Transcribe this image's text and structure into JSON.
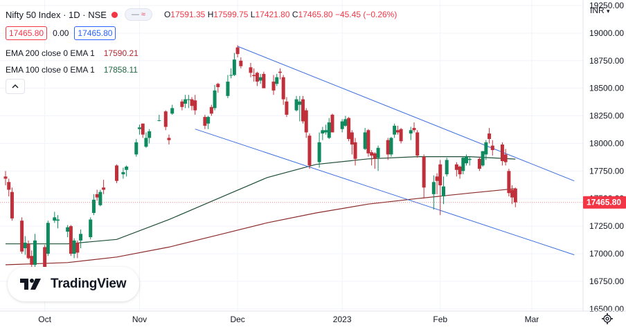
{
  "header": {
    "symbol": "Nifty 50 Index · 1D · NSE",
    "indicator_icon": "wave-icon",
    "ohlc": {
      "o_label": "O",
      "o": "17591.35",
      "h_label": "H",
      "h": "17599.75",
      "l_label": "L",
      "l": "17421.80",
      "c_label": "C",
      "c": "17465.80",
      "change": "−45.45 (−0.26%)"
    }
  },
  "trade": {
    "sell": "17465.80",
    "spread": "0.00",
    "buy": "17465.80"
  },
  "indicators": [
    {
      "label": "EMA 200 close 0 EMA 1",
      "value": "17590.21"
    },
    {
      "label": "EMA 100 close 0 EMA 1",
      "value": "17858.11"
    }
  ],
  "logo": {
    "text": "TradingView"
  },
  "currency": "INR",
  "colors": {
    "up": "#0f8a5f",
    "down": "#c0303b",
    "ema200": "#8b2a2a",
    "ema100": "#1e4d35",
    "trend": "#3d6fe0",
    "price_tag": "#f23645"
  },
  "chart_data": {
    "type": "candlestick",
    "y_ticks": [
      "19250.00",
      "19000.00",
      "18750.00",
      "18500.00",
      "18250.00",
      "18000.00",
      "17750.00",
      "17500.00",
      "17250.00",
      "17000.00",
      "16750.00",
      "16500.00"
    ],
    "x_ticks": [
      {
        "date": "2022-10-03",
        "label": "Oct"
      },
      {
        "date": "2022-11-01",
        "label": "Nov"
      },
      {
        "date": "2022-12-01",
        "label": "Dec"
      },
      {
        "date": "2023-01-02",
        "label": "2023"
      },
      {
        "date": "2023-02-01",
        "label": "Feb"
      },
      {
        "date": "2023-03-01",
        "label": "Mar"
      }
    ],
    "ylim": [
      16480,
      19300
    ],
    "xlim": [
      "2022-09-21",
      "2023-03-15"
    ],
    "last_price": "17465.80",
    "candles": [
      {
        "d": "2022-09-21",
        "o": 17700,
        "h": 17750,
        "l": 17620,
        "c": 17680
      },
      {
        "d": "2022-09-22",
        "o": 17650,
        "h": 17680,
        "l": 17520,
        "c": 17580
      },
      {
        "d": "2022-09-23",
        "o": 17560,
        "h": 17600,
        "l": 17300,
        "c": 17320
      },
      {
        "d": "2022-09-26",
        "o": 17300,
        "h": 17330,
        "l": 17000,
        "c": 17020
      },
      {
        "d": "2022-09-27",
        "o": 17050,
        "h": 17160,
        "l": 16990,
        "c": 17100
      },
      {
        "d": "2022-09-28",
        "o": 17090,
        "h": 17120,
        "l": 16950,
        "c": 16960
      },
      {
        "d": "2022-09-29",
        "o": 16980,
        "h": 17030,
        "l": 16880,
        "c": 16900
      },
      {
        "d": "2022-09-30",
        "o": 16900,
        "h": 17180,
        "l": 16860,
        "c": 17120
      },
      {
        "d": "2022-10-03",
        "o": 17060,
        "h": 17080,
        "l": 16860,
        "c": 16880
      },
      {
        "d": "2022-10-04",
        "o": 17000,
        "h": 17300,
        "l": 16980,
        "c": 17280
      },
      {
        "d": "2022-10-06",
        "o": 17300,
        "h": 17380,
        "l": 17280,
        "c": 17330
      },
      {
        "d": "2022-10-07",
        "o": 17300,
        "h": 17350,
        "l": 17230,
        "c": 17310
      },
      {
        "d": "2022-10-10",
        "o": 17200,
        "h": 17260,
        "l": 17150,
        "c": 17240
      },
      {
        "d": "2022-10-11",
        "o": 17250,
        "h": 17260,
        "l": 16980,
        "c": 17000
      },
      {
        "d": "2022-10-12",
        "o": 17000,
        "h": 17140,
        "l": 16960,
        "c": 17120
      },
      {
        "d": "2022-10-13",
        "o": 17100,
        "h": 17120,
        "l": 16960,
        "c": 17010
      },
      {
        "d": "2022-10-14",
        "o": 17120,
        "h": 17220,
        "l": 17050,
        "c": 17180
      },
      {
        "d": "2022-10-17",
        "o": 17150,
        "h": 17330,
        "l": 17130,
        "c": 17310
      },
      {
        "d": "2022-10-18",
        "o": 17370,
        "h": 17540,
        "l": 17350,
        "c": 17490
      },
      {
        "d": "2022-10-19",
        "o": 17540,
        "h": 17580,
        "l": 17480,
        "c": 17510
      },
      {
        "d": "2022-10-20",
        "o": 17440,
        "h": 17580,
        "l": 17430,
        "c": 17560
      },
      {
        "d": "2022-10-21",
        "o": 17600,
        "h": 17670,
        "l": 17540,
        "c": 17580
      },
      {
        "d": "2022-10-25",
        "o": 17800,
        "h": 17810,
        "l": 17640,
        "c": 17660
      },
      {
        "d": "2022-10-27",
        "o": 17720,
        "h": 17780,
        "l": 17680,
        "c": 17740
      },
      {
        "d": "2022-10-28",
        "o": 17760,
        "h": 17800,
        "l": 17700,
        "c": 17790
      },
      {
        "d": "2022-10-31",
        "o": 17900,
        "h": 18040,
        "l": 17880,
        "c": 18010
      },
      {
        "d": "2022-11-01",
        "o": 18130,
        "h": 18170,
        "l": 18080,
        "c": 18145
      },
      {
        "d": "2022-11-02",
        "o": 18180,
        "h": 18180,
        "l": 18050,
        "c": 18080
      },
      {
        "d": "2022-11-03",
        "o": 17970,
        "h": 18100,
        "l": 17960,
        "c": 18050
      },
      {
        "d": "2022-11-04",
        "o": 18050,
        "h": 18130,
        "l": 18000,
        "c": 18110
      },
      {
        "d": "2022-11-07",
        "o": 18210,
        "h": 18260,
        "l": 18200,
        "c": 18210
      },
      {
        "d": "2022-11-09",
        "o": 18290,
        "h": 18300,
        "l": 18120,
        "c": 18150
      },
      {
        "d": "2022-11-10",
        "o": 18050,
        "h": 18080,
        "l": 17990,
        "c": 18030
      },
      {
        "d": "2022-11-11",
        "o": 18270,
        "h": 18350,
        "l": 18260,
        "c": 18320
      },
      {
        "d": "2022-11-14",
        "o": 18380,
        "h": 18400,
        "l": 18300,
        "c": 18330
      },
      {
        "d": "2022-11-15",
        "o": 18360,
        "h": 18440,
        "l": 18320,
        "c": 18400
      },
      {
        "d": "2022-11-16",
        "o": 18400,
        "h": 18440,
        "l": 18320,
        "c": 18400
      },
      {
        "d": "2022-11-17",
        "o": 18400,
        "h": 18420,
        "l": 18300,
        "c": 18340
      },
      {
        "d": "2022-11-18",
        "o": 18390,
        "h": 18440,
        "l": 18260,
        "c": 18300
      },
      {
        "d": "2022-11-21",
        "o": 18240,
        "h": 18260,
        "l": 18130,
        "c": 18160
      },
      {
        "d": "2022-11-22",
        "o": 18180,
        "h": 18250,
        "l": 18130,
        "c": 18240
      },
      {
        "d": "2022-11-23",
        "o": 18330,
        "h": 18350,
        "l": 18250,
        "c": 18270
      },
      {
        "d": "2022-11-24",
        "o": 18320,
        "h": 18530,
        "l": 18300,
        "c": 18480
      },
      {
        "d": "2022-11-25",
        "o": 18540,
        "h": 18550,
        "l": 18460,
        "c": 18510
      },
      {
        "d": "2022-11-28",
        "o": 18430,
        "h": 18620,
        "l": 18410,
        "c": 18560
      },
      {
        "d": "2022-11-29",
        "o": 18620,
        "h": 18680,
        "l": 18590,
        "c": 18620
      },
      {
        "d": "2022-11-30",
        "o": 18620,
        "h": 18820,
        "l": 18610,
        "c": 18760
      },
      {
        "d": "2022-12-01",
        "o": 18870,
        "h": 18890,
        "l": 18780,
        "c": 18810
      },
      {
        "d": "2022-12-02",
        "o": 18750,
        "h": 18780,
        "l": 18680,
        "c": 18700
      },
      {
        "d": "2022-12-05",
        "o": 18690,
        "h": 18730,
        "l": 18600,
        "c": 18640
      },
      {
        "d": "2022-12-06",
        "o": 18620,
        "h": 18680,
        "l": 18560,
        "c": 18610
      },
      {
        "d": "2022-12-07",
        "o": 18640,
        "h": 18650,
        "l": 18520,
        "c": 18560
      },
      {
        "d": "2022-12-08",
        "o": 18570,
        "h": 18630,
        "l": 18540,
        "c": 18600
      },
      {
        "d": "2022-12-09",
        "o": 18630,
        "h": 18650,
        "l": 18510,
        "c": 18500
      },
      {
        "d": "2022-12-12",
        "o": 18560,
        "h": 18620,
        "l": 18440,
        "c": 18480
      },
      {
        "d": "2022-12-13",
        "o": 18540,
        "h": 18630,
        "l": 18520,
        "c": 18600
      },
      {
        "d": "2022-12-14",
        "o": 18650,
        "h": 18680,
        "l": 18580,
        "c": 18640
      },
      {
        "d": "2022-12-15",
        "o": 18600,
        "h": 18620,
        "l": 18350,
        "c": 18400
      },
      {
        "d": "2022-12-16",
        "o": 18380,
        "h": 18420,
        "l": 18240,
        "c": 18260
      },
      {
        "d": "2022-12-19",
        "o": 18300,
        "h": 18430,
        "l": 18290,
        "c": 18400
      },
      {
        "d": "2022-12-20",
        "o": 18350,
        "h": 18430,
        "l": 18200,
        "c": 18380
      },
      {
        "d": "2022-12-21",
        "o": 18400,
        "h": 18430,
        "l": 18180,
        "c": 18200
      },
      {
        "d": "2022-12-22",
        "o": 18300,
        "h": 18320,
        "l": 18050,
        "c": 18100
      },
      {
        "d": "2022-12-23",
        "o": 18070,
        "h": 18090,
        "l": 17770,
        "c": 17800
      },
      {
        "d": "2022-12-26",
        "o": 17830,
        "h": 18100,
        "l": 17780,
        "c": 18010
      },
      {
        "d": "2022-12-27",
        "o": 18090,
        "h": 18150,
        "l": 18030,
        "c": 18120
      },
      {
        "d": "2022-12-28",
        "o": 18100,
        "h": 18170,
        "l": 18080,
        "c": 18120
      },
      {
        "d": "2022-12-29",
        "o": 18050,
        "h": 18230,
        "l": 18040,
        "c": 18190
      },
      {
        "d": "2022-12-30",
        "o": 18260,
        "h": 18270,
        "l": 18100,
        "c": 18100
      },
      {
        "d": "2023-01-02",
        "o": 18130,
        "h": 18220,
        "l": 18100,
        "c": 18200
      },
      {
        "d": "2023-01-03",
        "o": 18160,
        "h": 18250,
        "l": 18150,
        "c": 18220
      },
      {
        "d": "2023-01-04",
        "o": 18230,
        "h": 18240,
        "l": 18020,
        "c": 18040
      },
      {
        "d": "2023-01-05",
        "o": 18100,
        "h": 18120,
        "l": 17900,
        "c": 17990
      },
      {
        "d": "2023-01-06",
        "o": 18010,
        "h": 18050,
        "l": 17800,
        "c": 17860
      },
      {
        "d": "2023-01-09",
        "o": 17950,
        "h": 18140,
        "l": 17940,
        "c": 18100
      },
      {
        "d": "2023-01-10",
        "o": 18120,
        "h": 18130,
        "l": 17880,
        "c": 17910
      },
      {
        "d": "2023-01-11",
        "o": 17920,
        "h": 17940,
        "l": 17800,
        "c": 17890
      },
      {
        "d": "2023-01-12",
        "o": 17910,
        "h": 17920,
        "l": 17770,
        "c": 17860
      },
      {
        "d": "2023-01-13",
        "o": 17870,
        "h": 17980,
        "l": 17750,
        "c": 17960
      },
      {
        "d": "2023-01-16",
        "o": 18030,
        "h": 18050,
        "l": 17850,
        "c": 17900
      },
      {
        "d": "2023-01-17",
        "o": 17900,
        "h": 18060,
        "l": 17880,
        "c": 18050
      },
      {
        "d": "2023-01-18",
        "o": 18080,
        "h": 18180,
        "l": 18050,
        "c": 18160
      },
      {
        "d": "2023-01-19",
        "o": 18120,
        "h": 18160,
        "l": 18080,
        "c": 18100
      },
      {
        "d": "2023-01-20",
        "o": 18130,
        "h": 18140,
        "l": 18000,
        "c": 18020
      },
      {
        "d": "2023-01-23",
        "o": 18090,
        "h": 18150,
        "l": 18030,
        "c": 18120
      },
      {
        "d": "2023-01-24",
        "o": 18140,
        "h": 18190,
        "l": 18100,
        "c": 18120
      },
      {
        "d": "2023-01-25",
        "o": 18100,
        "h": 18120,
        "l": 17870,
        "c": 17890
      },
      {
        "d": "2023-01-27",
        "o": 17880,
        "h": 17900,
        "l": 17500,
        "c": 17600
      },
      {
        "d": "2023-01-30",
        "o": 17540,
        "h": 17710,
        "l": 17400,
        "c": 17650
      },
      {
        "d": "2023-01-31",
        "o": 17700,
        "h": 17730,
        "l": 17540,
        "c": 17660
      },
      {
        "d": "2023-02-01",
        "o": 17810,
        "h": 17850,
        "l": 17350,
        "c": 17620
      },
      {
        "d": "2023-02-02",
        "o": 17520,
        "h": 17700,
        "l": 17450,
        "c": 17610
      },
      {
        "d": "2023-02-03",
        "o": 17720,
        "h": 17870,
        "l": 17700,
        "c": 17850
      },
      {
        "d": "2023-02-06",
        "o": 17810,
        "h": 17830,
        "l": 17700,
        "c": 17760
      },
      {
        "d": "2023-02-07",
        "o": 17790,
        "h": 17800,
        "l": 17680,
        "c": 17720
      },
      {
        "d": "2023-02-08",
        "o": 17750,
        "h": 17880,
        "l": 17720,
        "c": 17870
      },
      {
        "d": "2023-02-09",
        "o": 17820,
        "h": 17900,
        "l": 17800,
        "c": 17880
      },
      {
        "d": "2023-02-10",
        "o": 17850,
        "h": 17880,
        "l": 17800,
        "c": 17860
      },
      {
        "d": "2023-02-13",
        "o": 17860,
        "h": 17880,
        "l": 17750,
        "c": 17770
      },
      {
        "d": "2023-02-14",
        "o": 17800,
        "h": 17930,
        "l": 17790,
        "c": 17930
      },
      {
        "d": "2023-02-15",
        "o": 17900,
        "h": 18030,
        "l": 17850,
        "c": 18010
      },
      {
        "d": "2023-02-16",
        "o": 18090,
        "h": 18140,
        "l": 18000,
        "c": 18040
      },
      {
        "d": "2023-02-17",
        "o": 17980,
        "h": 18030,
        "l": 17890,
        "c": 17940
      },
      {
        "d": "2023-02-20",
        "o": 17990,
        "h": 18010,
        "l": 17800,
        "c": 17840
      },
      {
        "d": "2023-02-21",
        "o": 17900,
        "h": 17950,
        "l": 17800,
        "c": 17830
      },
      {
        "d": "2023-02-22",
        "o": 17750,
        "h": 17770,
        "l": 17520,
        "c": 17550
      },
      {
        "d": "2023-02-23",
        "o": 17580,
        "h": 17620,
        "l": 17450,
        "c": 17510
      },
      {
        "d": "2023-02-24",
        "o": 17591.35,
        "h": 17599.75,
        "l": 17421.8,
        "c": 17465.8
      }
    ],
    "ema200": [
      {
        "d": "2022-09-21",
        "v": 16900
      },
      {
        "d": "2022-10-10",
        "v": 16920
      },
      {
        "d": "2022-10-25",
        "v": 16970
      },
      {
        "d": "2022-11-10",
        "v": 17060
      },
      {
        "d": "2022-11-25",
        "v": 17170
      },
      {
        "d": "2022-12-10",
        "v": 17280
      },
      {
        "d": "2022-12-25",
        "v": 17370
      },
      {
        "d": "2023-01-10",
        "v": 17450
      },
      {
        "d": "2023-01-25",
        "v": 17500
      },
      {
        "d": "2023-02-10",
        "v": 17550
      },
      {
        "d": "2023-02-24",
        "v": 17590.21
      }
    ],
    "ema100": [
      {
        "d": "2022-09-21",
        "v": 17090
      },
      {
        "d": "2022-10-10",
        "v": 17090
      },
      {
        "d": "2022-10-25",
        "v": 17130
      },
      {
        "d": "2022-11-10",
        "v": 17310
      },
      {
        "d": "2022-11-25",
        "v": 17500
      },
      {
        "d": "2022-12-10",
        "v": 17690
      },
      {
        "d": "2022-12-25",
        "v": 17810
      },
      {
        "d": "2023-01-10",
        "v": 17860
      },
      {
        "d": "2023-01-25",
        "v": 17880
      },
      {
        "d": "2023-02-10",
        "v": 17880
      },
      {
        "d": "2023-02-24",
        "v": 17858.11
      }
    ],
    "trendlines": [
      {
        "d1": "2022-12-01",
        "v1": 18880,
        "d2": "2023-03-14",
        "v2": 17660
      },
      {
        "d1": "2022-11-18",
        "v1": 18130,
        "d2": "2023-03-14",
        "v2": 16990
      }
    ]
  }
}
